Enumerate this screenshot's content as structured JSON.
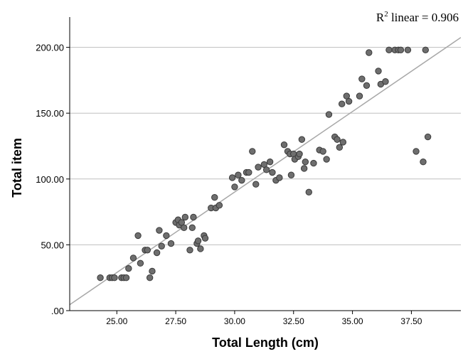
{
  "chart_data": {
    "type": "scatter",
    "title": "",
    "xlabel": "Total Length (cm)",
    "ylabel": "Total item",
    "xlim": [
      23.0,
      39.6
    ],
    "ylim": [
      0,
      223
    ],
    "x_ticks": [
      25,
      27.5,
      30,
      32.5,
      35,
      37.5
    ],
    "x_tick_labels": [
      "25.00",
      "27.50",
      "30.00",
      "32.50",
      "35.00",
      "37.50"
    ],
    "y_ticks": [
      0,
      50,
      100,
      150,
      200
    ],
    "y_tick_labels": [
      ".00",
      "50.00",
      "100.00",
      "150.00",
      "200.00"
    ],
    "grid": "horizontal",
    "annotation": {
      "base": "R",
      "sup": "2",
      "rest": " linear = 0.906"
    },
    "fit_line": {
      "type": "linear",
      "x": [
        23.0,
        39.6
      ],
      "y": [
        4.5,
        207.5
      ]
    },
    "colors": {
      "point_fill": "#6e6e6e",
      "point_stroke": "#3a3a3a",
      "fit_line": "#a8a8a8",
      "gridline": "#bfbfbf",
      "axis": "#000000"
    },
    "points": [
      [
        24.3,
        25
      ],
      [
        24.7,
        25
      ],
      [
        24.8,
        25
      ],
      [
        24.9,
        25
      ],
      [
        25.2,
        25
      ],
      [
        25.3,
        25
      ],
      [
        25.4,
        25
      ],
      [
        25.5,
        32
      ],
      [
        25.7,
        40
      ],
      [
        25.9,
        57
      ],
      [
        26.0,
        36
      ],
      [
        26.2,
        46
      ],
      [
        26.3,
        46
      ],
      [
        26.4,
        25
      ],
      [
        26.5,
        30
      ],
      [
        26.7,
        44
      ],
      [
        26.8,
        61
      ],
      [
        26.9,
        49
      ],
      [
        27.1,
        57
      ],
      [
        27.3,
        51
      ],
      [
        27.5,
        67
      ],
      [
        27.6,
        69
      ],
      [
        27.65,
        65
      ],
      [
        27.75,
        67
      ],
      [
        27.85,
        63
      ],
      [
        27.9,
        71
      ],
      [
        28.1,
        46
      ],
      [
        28.2,
        63
      ],
      [
        28.25,
        71
      ],
      [
        28.4,
        51
      ],
      [
        28.45,
        53
      ],
      [
        28.55,
        47
      ],
      [
        28.7,
        57
      ],
      [
        28.75,
        55
      ],
      [
        29.0,
        78
      ],
      [
        29.15,
        86
      ],
      [
        29.2,
        78
      ],
      [
        29.35,
        80
      ],
      [
        29.9,
        101
      ],
      [
        30.0,
        94
      ],
      [
        30.15,
        103
      ],
      [
        30.3,
        99
      ],
      [
        30.5,
        105
      ],
      [
        30.6,
        105
      ],
      [
        30.75,
        121
      ],
      [
        30.9,
        96
      ],
      [
        31.0,
        109
      ],
      [
        31.25,
        111
      ],
      [
        31.35,
        107
      ],
      [
        31.5,
        113
      ],
      [
        31.6,
        105
      ],
      [
        31.75,
        99
      ],
      [
        31.9,
        101
      ],
      [
        32.1,
        126
      ],
      [
        32.25,
        121
      ],
      [
        32.35,
        119
      ],
      [
        32.4,
        103
      ],
      [
        32.5,
        119
      ],
      [
        32.55,
        115
      ],
      [
        32.7,
        117
      ],
      [
        32.75,
        119
      ],
      [
        32.85,
        130
      ],
      [
        32.95,
        108
      ],
      [
        33.0,
        113
      ],
      [
        33.15,
        90
      ],
      [
        33.35,
        112
      ],
      [
        33.6,
        122
      ],
      [
        33.75,
        121
      ],
      [
        33.9,
        115
      ],
      [
        34.0,
        149
      ],
      [
        34.25,
        132
      ],
      [
        34.35,
        130
      ],
      [
        34.45,
        124
      ],
      [
        34.55,
        157
      ],
      [
        34.6,
        128
      ],
      [
        34.75,
        163
      ],
      [
        34.85,
        159
      ],
      [
        35.3,
        163
      ],
      [
        35.4,
        176
      ],
      [
        35.6,
        171
      ],
      [
        35.7,
        196
      ],
      [
        36.1,
        182
      ],
      [
        36.2,
        172
      ],
      [
        36.4,
        174
      ],
      [
        36.55,
        198
      ],
      [
        36.8,
        198
      ],
      [
        36.95,
        198
      ],
      [
        37.05,
        198
      ],
      [
        37.35,
        198
      ],
      [
        37.7,
        121
      ],
      [
        38.0,
        113
      ],
      [
        38.1,
        198
      ],
      [
        38.2,
        132
      ]
    ]
  }
}
